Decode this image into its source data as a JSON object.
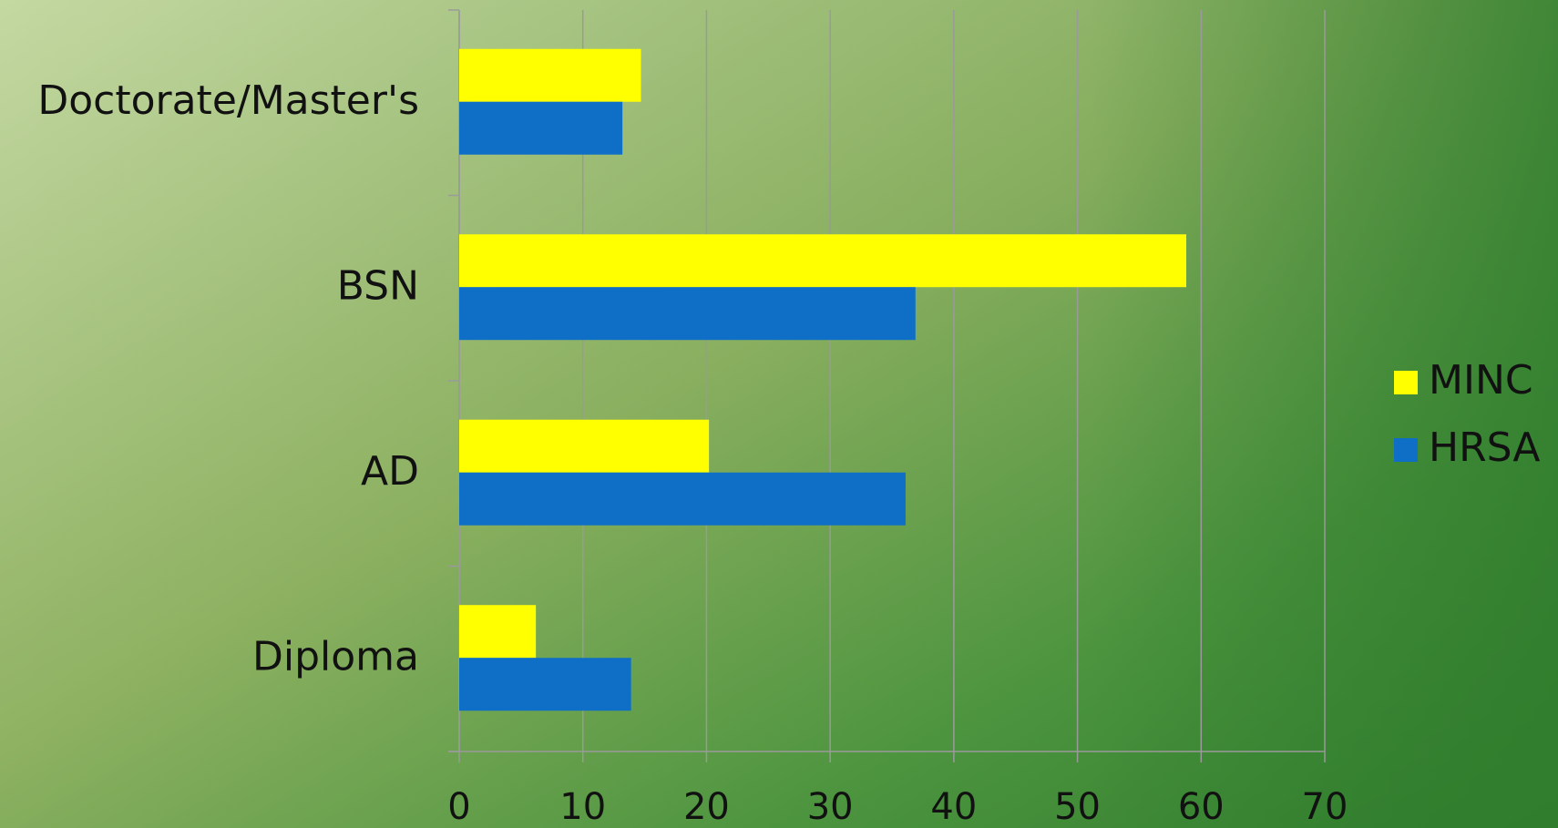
{
  "chart_data": {
    "type": "bar",
    "orientation": "horizontal",
    "categories": [
      "Doctorate/Master's",
      "BSN",
      "AD",
      "Diploma"
    ],
    "series": [
      {
        "name": "MINC",
        "color": "#ffff00",
        "values": [
          14.7,
          58.8,
          20.2,
          6.2
        ]
      },
      {
        "name": "HRSA",
        "color": "#0f6fc6",
        "values": [
          13.2,
          36.9,
          36.1,
          13.9
        ]
      }
    ],
    "xlim": [
      0,
      70
    ],
    "xticks": [
      0,
      10,
      20,
      30,
      40,
      50,
      60,
      70
    ],
    "grid": true,
    "legend": "right"
  }
}
